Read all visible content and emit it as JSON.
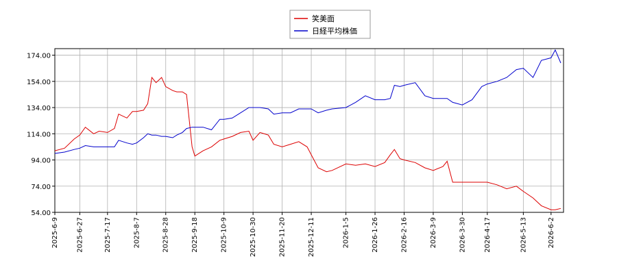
{
  "chart_data": {
    "type": "line",
    "x": [
      "2025-6-9",
      "2025-6-16",
      "2025-6-23",
      "2025-6-27",
      "2025-7-1",
      "2025-7-7",
      "2025-7-11",
      "2025-7-17",
      "2025-7-22",
      "2025-7-25",
      "2025-7-31",
      "2025-8-4",
      "2025-8-7",
      "2025-8-12",
      "2025-8-15",
      "2025-8-18",
      "2025-8-21",
      "2025-8-25",
      "2025-8-28",
      "2025-9-2",
      "2025-9-5",
      "2025-9-9",
      "2025-9-12",
      "2025-9-16",
      "2025-9-18",
      "2025-9-24",
      "2025-9-30",
      "2025-10-6",
      "2025-10-9",
      "2025-10-15",
      "2025-10-21",
      "2025-10-27",
      "2025-10-30",
      "2025-11-4",
      "2025-11-10",
      "2025-11-14",
      "2025-11-20",
      "2025-11-26",
      "2025-12-2",
      "2025-12-8",
      "2025-12-11",
      "2025-12-16",
      "2025-12-22",
      "2025-12-26",
      "2026-1-5",
      "2026-1-12",
      "2026-1-19",
      "2026-1-26",
      "2026-2-2",
      "2026-2-6",
      "2026-2-9",
      "2026-2-13",
      "2026-2-16",
      "2026-2-24",
      "2026-3-3",
      "2026-3-9",
      "2026-3-16",
      "2026-3-19",
      "2026-3-23",
      "2026-3-30",
      "2026-4-6",
      "2026-4-13",
      "2026-4-17",
      "2026-4-24",
      "2026-5-1",
      "2026-5-8",
      "2026-5-13",
      "2026-5-20",
      "2026-5-26",
      "2026-6-2",
      "2026-6-5",
      "2026-6-9"
    ],
    "series": [
      {
        "name": "笑美面",
        "color": "#dd0000",
        "values": [
          101,
          103,
          110,
          113,
          119,
          114,
          116,
          115,
          118,
          129,
          126,
          131,
          131,
          132,
          137,
          157,
          153,
          157,
          150,
          147,
          146,
          146,
          144,
          104,
          97,
          101,
          104,
          109,
          110,
          112,
          115,
          116,
          109,
          115,
          113,
          106,
          104,
          106,
          108,
          104,
          98,
          88,
          85,
          86,
          91,
          90,
          91,
          89,
          92,
          98,
          102,
          95,
          94,
          92,
          88,
          86,
          89,
          93,
          77,
          77,
          77,
          77,
          77,
          75,
          72,
          74,
          70,
          65,
          59,
          56,
          56,
          57
        ]
      },
      {
        "name": "日経平均株価",
        "color": "#0000cc",
        "values": [
          99,
          100,
          102,
          103,
          105,
          104,
          104,
          104,
          104,
          109,
          107,
          106,
          107,
          111,
          114,
          113,
          113,
          112,
          112,
          111,
          113,
          115,
          118,
          119,
          119,
          119,
          117,
          125,
          125,
          126,
          130,
          134,
          134,
          134,
          133,
          129,
          130,
          130,
          133,
          133,
          133,
          130,
          132,
          133,
          134,
          138,
          143,
          140,
          140,
          141,
          151,
          150,
          151,
          153,
          143,
          141,
          141,
          141,
          138,
          136,
          140,
          150,
          152,
          154,
          157,
          163,
          164,
          157,
          170,
          172,
          178,
          168
        ]
      }
    ],
    "xlim": [
      "2025-6-9",
      "2026-6-11"
    ],
    "xticks": [
      "2025-6-9",
      "2025-6-27",
      "2025-7-17",
      "2025-8-7",
      "2025-8-28",
      "2025-9-18",
      "2025-10-9",
      "2025-10-30",
      "2025-11-20",
      "2025-12-11",
      "2026-1-5",
      "2026-1-26",
      "2026-2-16",
      "2026-3-9",
      "2026-3-30",
      "2026-4-17",
      "2026-5-13",
      "2026-6-2"
    ],
    "ylim": [
      54,
      179
    ],
    "yticks": [
      {
        "value": 54,
        "label": "54.00"
      },
      {
        "value": 74,
        "label": "74.00"
      },
      {
        "value": 94,
        "label": "94.00"
      },
      {
        "value": 114,
        "label": "114.00"
      },
      {
        "value": 134,
        "label": "134.00"
      },
      {
        "value": 154,
        "label": "154.00"
      },
      {
        "value": 174,
        "label": "174.00"
      }
    ],
    "grid": true,
    "legend": "top"
  }
}
